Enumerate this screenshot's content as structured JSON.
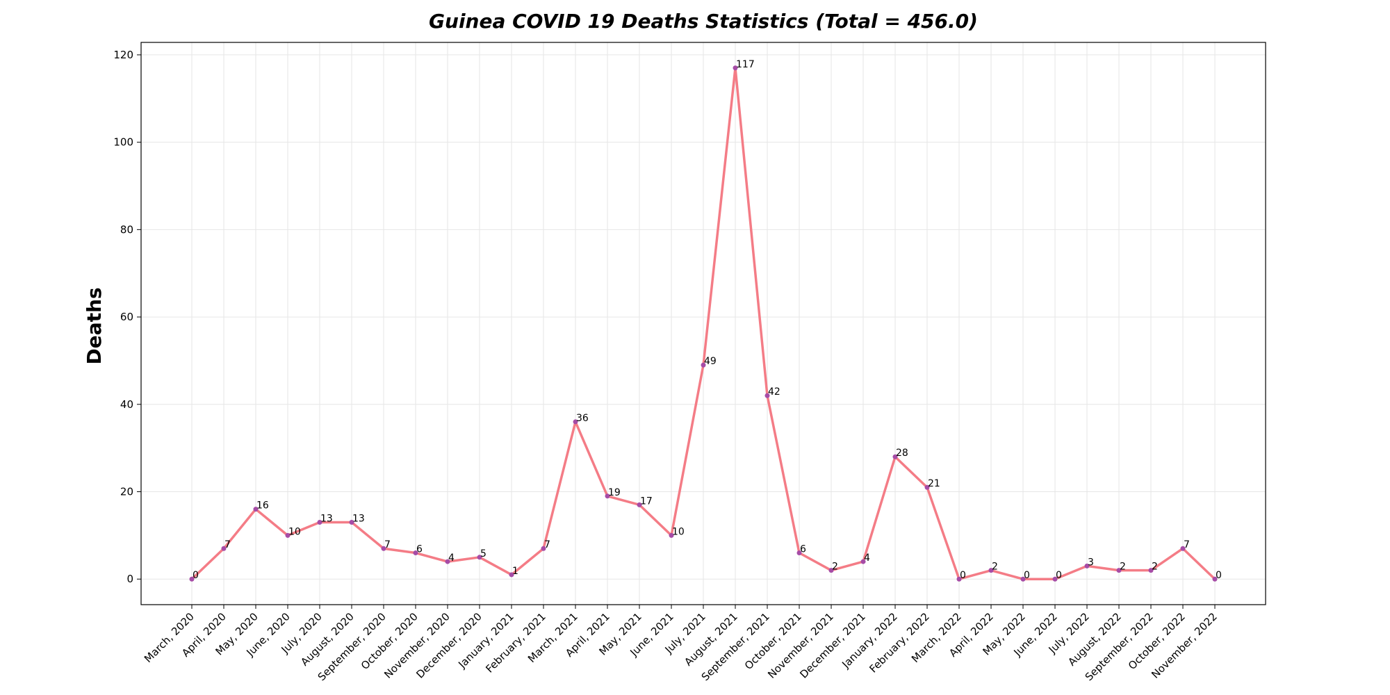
{
  "chart_data": {
    "type": "line",
    "title": "Guinea COVID 19 Deaths Statistics (Total = 456.0)",
    "xlabel": "",
    "ylabel": "Deaths",
    "categories": [
      "March, 2020",
      "April, 2020",
      "May, 2020",
      "June, 2020",
      "July, 2020",
      "August, 2020",
      "September, 2020",
      "October, 2020",
      "November, 2020",
      "December, 2020",
      "January, 2021",
      "February, 2021",
      "March, 2021",
      "April, 2021",
      "May, 2021",
      "June, 2021",
      "July, 2021",
      "August, 2021",
      "September, 2021",
      "October, 2021",
      "November, 2021",
      "December, 2021",
      "January, 2022",
      "February, 2022",
      "March, 2022",
      "April, 2022",
      "May, 2022",
      "June, 2022",
      "July, 2022",
      "August, 2022",
      "September, 2022",
      "October, 2022",
      "November, 2022"
    ],
    "series": [
      {
        "values": [
          0,
          7,
          16,
          10,
          13,
          13,
          7,
          6,
          4,
          5,
          1,
          7,
          36,
          19,
          17,
          10,
          49,
          117,
          42,
          6,
          2,
          4,
          28,
          21,
          0,
          2,
          0,
          0,
          3,
          2,
          2,
          7,
          0
        ]
      }
    ],
    "ylim": [
      -5.85,
      122.85
    ],
    "yticks": [
      0,
      20,
      40,
      60,
      80,
      100,
      120
    ],
    "grid": true,
    "legend": "none",
    "colors": {
      "line": "#f47c86",
      "marker": "#a64ca6"
    }
  }
}
